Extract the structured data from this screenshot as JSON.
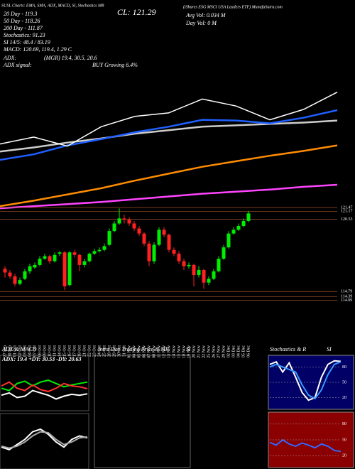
{
  "header": {
    "title": "SUSL Charts: EMA, SMA, ADX, MACD, SI, Stochastics MR",
    "close": "CL: 121.29",
    "company": "(iShares ESG MSCI USA Leaders ETF) MunafaSutra.com",
    "stats": [
      "20 Day - 119.3",
      "50 Day - 118.26",
      "200 Day - 111.87",
      "Stochastics: 91.23",
      "SI 14/5: 48.4 / 83.19",
      "MACD: 120.69, 119.4, 1.29 C"
    ],
    "avg_vol": "Avg Vol: 0.034 M",
    "day_vol": "Day Vol: 0 M",
    "adx": "ADX:",
    "adx_values": "(MGR) 19.4, 30.5, 20.6",
    "adx_signal": "ADX signal:",
    "adx_signal_value": "BUY Growing 6.4%"
  },
  "ma_panel": {
    "ylim": [
      105,
      123
    ],
    "series": [
      {
        "color": "#ff44ff",
        "values": [
          105.2,
          105.5,
          105.8,
          106.1,
          106.5,
          106.9,
          107.3,
          107.6,
          107.9,
          108.3,
          108.6
        ]
      },
      {
        "color": "#ff8c00",
        "values": [
          105.5,
          106.3,
          107.2,
          108.1,
          109.2,
          110.2,
          111.2,
          112.0,
          112.8,
          113.5,
          114.3
        ]
      },
      {
        "color": "#cccccc",
        "values": [
          113.4,
          114.0,
          114.7,
          115.3,
          116.0,
          116.5,
          117.0,
          117.2,
          117.4,
          117.6,
          117.9
        ]
      },
      {
        "color": "#1f5fff",
        "values": [
          112.2,
          113.0,
          114.3,
          115.2,
          116.2,
          117.0,
          118.0,
          117.9,
          117.5,
          118.3,
          119.4
        ]
      },
      {
        "color": "#ffffff",
        "values": [
          114.5,
          115.5,
          114.2,
          117.0,
          118.5,
          119.0,
          121.0,
          120.0,
          118.0,
          119.5,
          122.0
        ]
      }
    ]
  },
  "price_levels": [
    121.47,
    121.17,
    120.53,
    114.79,
    114.39,
    114.09
  ],
  "dates": [
    "27 Sep",
    "30 Sep",
    "01 Oct",
    "02 Oct",
    "03 Oct",
    "04 Oct",
    "07 Oct",
    "08 Oct",
    "09 Oct",
    "10 Oct",
    "11 Oct",
    "14 Oct",
    "15 Oct",
    "16 Oct",
    "17 Oct",
    "18 Oct",
    "21 Oct",
    "22 Oct",
    "23 Oct",
    "24 Oct",
    "25 Oct",
    "28 Oct",
    "29 Oct",
    "30 Oct",
    "31 Oct",
    "01 Nov",
    "04 Nov",
    "05 Nov",
    "06 Nov",
    "07 Nov",
    "08 Nov",
    "11 Nov",
    "12 Nov",
    "13 Nov",
    "14 Nov",
    "15 Nov",
    "18 Nov",
    "19 Nov",
    "20 Nov",
    "21 Nov",
    "22 Nov",
    "25 Nov",
    "26 Nov",
    "27 Nov",
    "29 Nov",
    "02 Dec",
    "03 Dec",
    "04 Dec",
    "05 Dec",
    "06 Dec"
  ],
  "candles": [
    [
      116.6,
      116.8,
      115.9,
      116.3
    ],
    [
      116.3,
      116.5,
      115.8,
      116.0
    ],
    [
      116.0,
      116.2,
      115.2,
      115.4
    ],
    [
      115.4,
      115.9,
      115.3,
      115.7
    ],
    [
      115.8,
      116.6,
      115.7,
      116.4
    ],
    [
      116.4,
      117.0,
      116.2,
      116.8
    ],
    [
      116.7,
      117.1,
      116.6,
      116.9
    ],
    [
      116.9,
      117.6,
      116.8,
      117.4
    ],
    [
      117.4,
      117.8,
      117.3,
      117.6
    ],
    [
      117.6,
      117.7,
      117.0,
      117.2
    ],
    [
      117.2,
      117.9,
      117.1,
      117.7
    ],
    [
      117.8,
      118.0,
      117.6,
      117.9
    ],
    [
      117.9,
      118.0,
      114.9,
      115.2
    ],
    [
      115.3,
      118.0,
      115.2,
      117.9
    ],
    [
      117.9,
      118.1,
      117.5,
      117.7
    ],
    [
      117.7,
      117.8,
      116.4,
      116.9
    ],
    [
      116.9,
      117.4,
      116.7,
      117.2
    ],
    [
      117.2,
      117.9,
      117.1,
      117.8
    ],
    [
      117.8,
      118.2,
      117.7,
      118.0
    ],
    [
      118.0,
      118.3,
      117.9,
      118.1
    ],
    [
      118.1,
      118.6,
      118.0,
      118.4
    ],
    [
      118.5,
      119.8,
      118.4,
      119.6
    ],
    [
      119.6,
      120.4,
      119.5,
      120.2
    ],
    [
      120.2,
      121.4,
      120.1,
      120.6
    ],
    [
      120.6,
      120.9,
      120.2,
      120.5
    ],
    [
      120.5,
      120.7,
      120.0,
      120.2
    ],
    [
      120.2,
      120.4,
      119.6,
      119.8
    ],
    [
      119.8,
      120.0,
      119.2,
      119.4
    ],
    [
      119.4,
      119.5,
      118.4,
      118.6
    ],
    [
      118.6,
      118.8,
      116.8,
      117.2
    ],
    [
      117.2,
      118.7,
      117.0,
      118.5
    ],
    [
      118.5,
      119.9,
      118.4,
      119.7
    ],
    [
      119.7,
      119.9,
      119.1,
      119.3
    ],
    [
      119.3,
      119.4,
      117.9,
      118.1
    ],
    [
      118.1,
      118.3,
      117.6,
      117.8
    ],
    [
      117.8,
      118.0,
      117.0,
      117.2
    ],
    [
      117.2,
      117.4,
      116.5,
      116.8
    ],
    [
      116.8,
      117.1,
      116.6,
      116.9
    ],
    [
      116.9,
      117.0,
      115.2,
      116.1
    ],
    [
      116.1,
      116.8,
      115.9,
      116.5
    ],
    [
      116.5,
      116.6,
      115.0,
      115.5
    ],
    [
      115.5,
      116.0,
      115.3,
      115.8
    ],
    [
      115.8,
      116.6,
      115.7,
      116.4
    ],
    [
      116.4,
      117.6,
      116.3,
      117.4
    ],
    [
      117.4,
      118.5,
      117.3,
      118.3
    ],
    [
      118.3,
      119.6,
      118.2,
      119.4
    ],
    [
      119.4,
      119.9,
      119.3,
      119.7
    ],
    [
      119.7,
      120.2,
      119.6,
      120.0
    ],
    [
      120.0,
      120.6,
      119.9,
      120.4
    ],
    [
      120.4,
      121.2,
      120.3,
      121.0
    ]
  ],
  "adx_panel": {
    "title": "ADX & MACD",
    "label": "ADX: 19.4 +DY: 30.53 -DY: 20.63",
    "series": [
      {
        "color": "#00ee00",
        "values": [
          45,
          40,
          55,
          60,
          50,
          58,
          62,
          55,
          48,
          52,
          55,
          58
        ]
      },
      {
        "color": "#ff3030",
        "values": [
          50,
          58,
          45,
          40,
          52,
          42,
          38,
          45,
          55,
          50,
          48,
          44
        ]
      },
      {
        "color": "#ffffff",
        "values": [
          30,
          35,
          25,
          28,
          40,
          35,
          30,
          22,
          28,
          32,
          30,
          33
        ]
      }
    ]
  },
  "macd_panel": {
    "series": [
      {
        "color": "#ffffff",
        "values": [
          40,
          35,
          45,
          55,
          70,
          75,
          65,
          50,
          40,
          55,
          62,
          58
        ]
      },
      {
        "color": "#aaaaaa",
        "values": [
          42,
          38,
          42,
          50,
          62,
          70,
          68,
          55,
          45,
          50,
          58,
          60
        ]
      }
    ]
  },
  "intraday_panel": {
    "title": "Intra Day Trading Price & MR",
    "tag": "SI"
  },
  "stoch_panel": {
    "title": "Stochastics & R",
    "tag": "SI",
    "yticks": [
      80,
      50,
      20
    ],
    "series": [
      {
        "color": "#ffffff",
        "values": [
          85,
          90,
          70,
          88,
          60,
          30,
          15,
          20,
          60,
          85,
          92,
          91
        ]
      },
      {
        "color": "#3399ff",
        "values": [
          80,
          85,
          80,
          75,
          70,
          45,
          25,
          18,
          35,
          65,
          85,
          90
        ]
      }
    ]
  },
  "si_panel": {
    "yticks": [
      80,
      50,
      20
    ],
    "series": [
      {
        "color": "#3366ff",
        "values": [
          45,
          40,
          50,
          42,
          38,
          44,
          40,
          35,
          42,
          38,
          30,
          28
        ]
      }
    ]
  }
}
